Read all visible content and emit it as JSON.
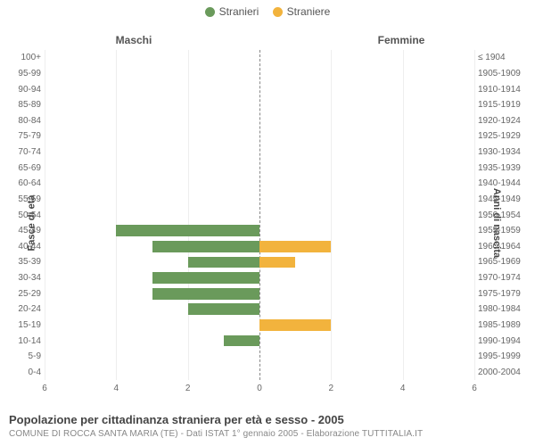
{
  "legend": {
    "male": {
      "label": "Stranieri",
      "color": "#6a9a5b"
    },
    "female": {
      "label": "Straniere",
      "color": "#f2b33d"
    }
  },
  "panel_titles": {
    "left": "Maschi",
    "right": "Femmine"
  },
  "axis_titles": {
    "left": "Fasce di età",
    "right": "Anni di nascita"
  },
  "chart": {
    "type": "population-pyramid",
    "x_max": 6,
    "x_ticks": [
      6,
      4,
      2,
      0,
      2,
      4,
      6
    ],
    "background_color": "#ffffff",
    "grid_color": "#eeeeee",
    "centerline_color": "#888888",
    "bar_height_ratio": 0.72,
    "rows": [
      {
        "age": "100+",
        "birth": "≤ 1904",
        "m": 0,
        "f": 0
      },
      {
        "age": "95-99",
        "birth": "1905-1909",
        "m": 0,
        "f": 0
      },
      {
        "age": "90-94",
        "birth": "1910-1914",
        "m": 0,
        "f": 0
      },
      {
        "age": "85-89",
        "birth": "1915-1919",
        "m": 0,
        "f": 0
      },
      {
        "age": "80-84",
        "birth": "1920-1924",
        "m": 0,
        "f": 0
      },
      {
        "age": "75-79",
        "birth": "1925-1929",
        "m": 0,
        "f": 0
      },
      {
        "age": "70-74",
        "birth": "1930-1934",
        "m": 0,
        "f": 0
      },
      {
        "age": "65-69",
        "birth": "1935-1939",
        "m": 0,
        "f": 0
      },
      {
        "age": "60-64",
        "birth": "1940-1944",
        "m": 0,
        "f": 0
      },
      {
        "age": "55-59",
        "birth": "1945-1949",
        "m": 0,
        "f": 0
      },
      {
        "age": "50-54",
        "birth": "1950-1954",
        "m": 0,
        "f": 0
      },
      {
        "age": "45-49",
        "birth": "1955-1959",
        "m": 4,
        "f": 0
      },
      {
        "age": "40-44",
        "birth": "1960-1964",
        "m": 3,
        "f": 2
      },
      {
        "age": "35-39",
        "birth": "1965-1969",
        "m": 2,
        "f": 1
      },
      {
        "age": "30-34",
        "birth": "1970-1974",
        "m": 3,
        "f": 0
      },
      {
        "age": "25-29",
        "birth": "1975-1979",
        "m": 3,
        "f": 0
      },
      {
        "age": "20-24",
        "birth": "1980-1984",
        "m": 2,
        "f": 0
      },
      {
        "age": "15-19",
        "birth": "1985-1989",
        "m": 0,
        "f": 2
      },
      {
        "age": "10-14",
        "birth": "1990-1994",
        "m": 1,
        "f": 0
      },
      {
        "age": "5-9",
        "birth": "1995-1999",
        "m": 0,
        "f": 0
      },
      {
        "age": "0-4",
        "birth": "2000-2004",
        "m": 0,
        "f": 0
      }
    ]
  },
  "caption": {
    "title": "Popolazione per cittadinanza straniera per età e sesso - 2005",
    "subtitle": "COMUNE DI ROCCA SANTA MARIA (TE) - Dati ISTAT 1° gennaio 2005 - Elaborazione TUTTITALIA.IT"
  }
}
